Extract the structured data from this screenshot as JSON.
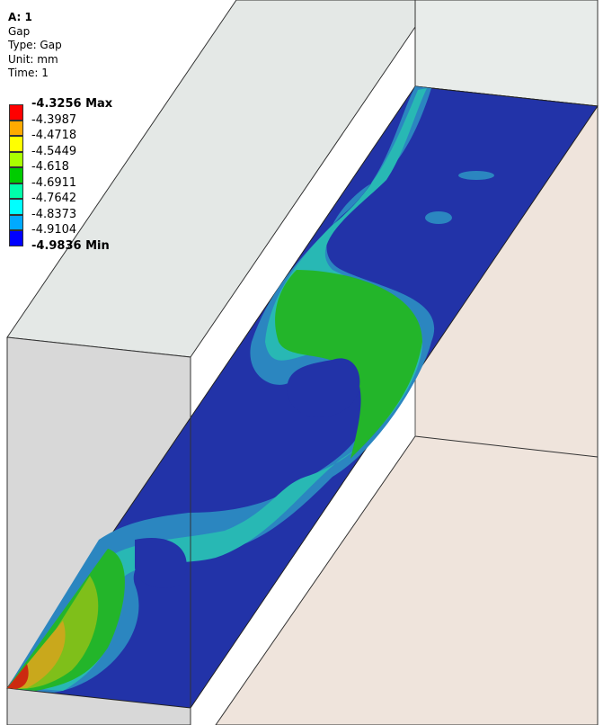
{
  "header": {
    "title": "A: 1",
    "result": "Gap",
    "type": "Type: Gap",
    "unit": "Unit: mm",
    "time": "Time: 1"
  },
  "legend": {
    "labels": [
      "-4.3256 Max",
      "-4.3987",
      "-4.4718",
      "-4.5449",
      "-4.618",
      "-4.6911",
      "-4.7642",
      "-4.8373",
      "-4.9104",
      "-4.9836 Min"
    ],
    "colors": [
      "#ff0000",
      "#ffaa00",
      "#ffff00",
      "#aaff00",
      "#00cc00",
      "#00ffaa",
      "#00ffff",
      "#00aaff",
      "#0000ff"
    ]
  },
  "contour_colors": {
    "min": "#2233a8",
    "band2": "#2b86c0",
    "band3": "#28b8b4",
    "band4": "#23b52a",
    "band5": "#7fbf1a",
    "band6": "#c9a81c",
    "max": "#cc2a10"
  }
}
